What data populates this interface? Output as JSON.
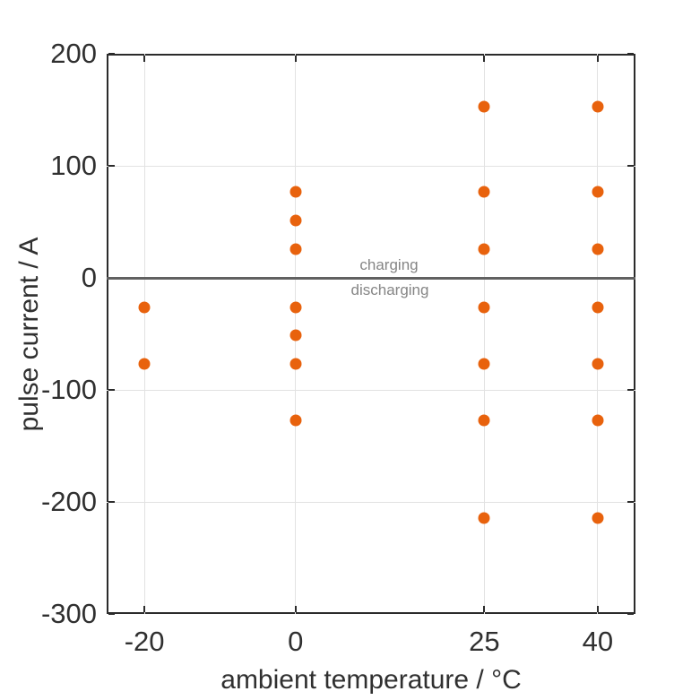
{
  "figure": {
    "xlabel": "ambient temperature / °C",
    "ylabel": "pulse current / A",
    "annotations": {
      "above_line": "charging",
      "below_line": "discharging"
    }
  },
  "colors": {
    "marker": "#e8620d",
    "grid": "#e2e2e2",
    "axis": "#2b2b2b",
    "tick_text": "#303030",
    "zero_line": "#616161",
    "annotation_text": "#858585",
    "background": "#ffffff"
  },
  "chart_data": {
    "type": "scatter",
    "title": "",
    "xlabel": "ambient temperature / °C",
    "ylabel": "pulse current / A",
    "xlim": [
      -25,
      45
    ],
    "ylim": [
      -300,
      200
    ],
    "x_ticks": [
      -20,
      0,
      25,
      40
    ],
    "y_ticks": [
      200,
      100,
      0,
      -100,
      -200,
      -300
    ],
    "grid": true,
    "legend": "none",
    "zero_line": {
      "y": 0,
      "label_above": "charging",
      "label_below": "discharging"
    },
    "series": [
      {
        "name": "pulse currents",
        "marker": "circle",
        "color": "#e8620d",
        "points": [
          {
            "x": -20,
            "y": -26
          },
          {
            "x": -20,
            "y": -77
          },
          {
            "x": 0,
            "y": 77
          },
          {
            "x": 0,
            "y": 51
          },
          {
            "x": 0,
            "y": 26
          },
          {
            "x": 0,
            "y": -26
          },
          {
            "x": 0,
            "y": -51
          },
          {
            "x": 0,
            "y": -77
          },
          {
            "x": 0,
            "y": -127
          },
          {
            "x": 25,
            "y": 153
          },
          {
            "x": 25,
            "y": 77
          },
          {
            "x": 25,
            "y": 26
          },
          {
            "x": 25,
            "y": -26
          },
          {
            "x": 25,
            "y": -77
          },
          {
            "x": 25,
            "y": -127
          },
          {
            "x": 25,
            "y": -214
          },
          {
            "x": 40,
            "y": 153
          },
          {
            "x": 40,
            "y": 77
          },
          {
            "x": 40,
            "y": 26
          },
          {
            "x": 40,
            "y": -26
          },
          {
            "x": 40,
            "y": -77
          },
          {
            "x": 40,
            "y": -127
          },
          {
            "x": 40,
            "y": -214
          }
        ]
      }
    ]
  }
}
